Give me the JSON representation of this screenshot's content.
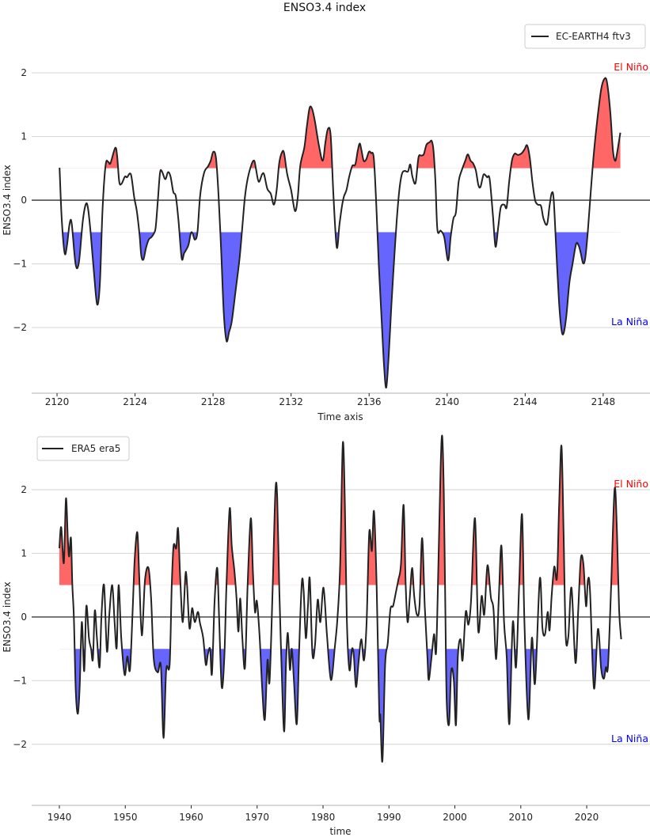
{
  "figure": {
    "title": "ENSO3.4 index"
  },
  "chart_data": [
    {
      "type": "line",
      "title": "",
      "xlabel": "Time axis",
      "ylabel": "ENSO3.4 index",
      "xlim": [
        2118.7,
        2150.4
      ],
      "ylim": [
        -3.03,
        2.87
      ],
      "xticks": [
        2120,
        2124,
        2128,
        2132,
        2136,
        2140,
        2144,
        2148
      ],
      "yticks": [
        -2,
        -1,
        0,
        1,
        2
      ],
      "grid": true,
      "legend": {
        "placement": "top-right",
        "entries": [
          "EC-EARTH4 ftv3"
        ]
      },
      "thresholds": {
        "el_nino": 0.5,
        "la_nina": -0.5
      },
      "annotations": {
        "el_nino": "El Niño",
        "la_nina": "La Niña"
      },
      "colors": {
        "line": "#222222",
        "el_nino_fill": "#ff6666",
        "la_nina_fill": "#6666ff",
        "el_nino_text": "#ff0000",
        "la_nina_text": "#0000ff",
        "zero_line": "#666666",
        "grid": "#d9d9d9"
      },
      "series": [
        {
          "name": "EC-EARTH4 ftv3",
          "x": [
            2120.13,
            2120.24,
            2120.39,
            2120.51,
            2120.64,
            2120.75,
            2120.95,
            2121.12,
            2121.32,
            2121.48,
            2121.59,
            2121.72,
            2121.9,
            2122.06,
            2122.2,
            2122.33,
            2122.49,
            2122.63,
            2122.74,
            2122.98,
            2123.08,
            2123.19,
            2123.31,
            2123.48,
            2123.59,
            2123.73,
            2123.82,
            2123.96,
            2124.09,
            2124.23,
            2124.32,
            2124.43,
            2124.56,
            2124.7,
            2124.84,
            2124.97,
            2125.06,
            2125.17,
            2125.28,
            2125.38,
            2125.55,
            2125.69,
            2125.82,
            2125.96,
            2126.09,
            2126.23,
            2126.39,
            2126.52,
            2126.73,
            2126.86,
            2126.95,
            2127.07,
            2127.2,
            2127.34,
            2127.54,
            2127.74,
            2127.88,
            2128.01,
            2128.15,
            2128.28,
            2128.42,
            2128.55,
            2128.69,
            2128.82,
            2128.96,
            2129.16,
            2129.36,
            2129.5,
            2129.63,
            2129.77,
            2129.97,
            2130.11,
            2130.2,
            2130.34,
            2130.52,
            2130.62,
            2130.78,
            2130.96,
            2131.12,
            2131.26,
            2131.39,
            2131.53,
            2131.64,
            2131.8,
            2132.0,
            2132.2,
            2132.34,
            2132.47,
            2132.68,
            2132.81,
            2132.95,
            2133.08,
            2133.22,
            2133.42,
            2133.62,
            2133.76,
            2133.89,
            2134.03,
            2134.17,
            2134.34,
            2134.48,
            2134.61,
            2134.71,
            2134.84,
            2134.98,
            2135.14,
            2135.29,
            2135.42,
            2135.52,
            2135.61,
            2135.72,
            2135.85,
            2135.99,
            2136.1,
            2136.24,
            2136.37,
            2136.5,
            2136.64,
            2136.77,
            2136.88,
            2137.01,
            2137.14,
            2137.27,
            2137.41,
            2137.55,
            2137.68,
            2137.82,
            2137.99,
            2138.11,
            2138.22,
            2138.38,
            2138.53,
            2138.67,
            2138.8,
            2138.94,
            2139.1,
            2139.21,
            2139.3,
            2139.4,
            2139.5,
            2139.67,
            2139.85,
            2140.05,
            2140.18,
            2140.32,
            2140.45,
            2140.59,
            2140.75,
            2140.93,
            2141.06,
            2141.2,
            2141.33,
            2141.47,
            2141.6,
            2141.71,
            2141.85,
            2141.94,
            2142.05,
            2142.18,
            2142.35,
            2142.48,
            2142.62,
            2142.75,
            2142.93,
            2143.05,
            2143.18,
            2143.32,
            2143.46,
            2143.63,
            2143.83,
            2143.97,
            2144.1,
            2144.24,
            2144.37,
            2144.51,
            2144.65,
            2144.81,
            2144.94,
            2145.12,
            2145.25,
            2145.36,
            2145.46,
            2145.59,
            2145.73,
            2145.86,
            2145.97,
            2146.11,
            2146.27,
            2146.43,
            2146.61,
            2146.74,
            2146.85,
            2146.97,
            2147.08,
            2147.21,
            2147.35,
            2147.51,
            2147.69,
            2147.89,
            2148.05,
            2148.19,
            2148.36,
            2148.5,
            2148.61,
            2148.7,
            2148.88
          ],
          "y": [
            0.51,
            -0.29,
            -0.83,
            -0.71,
            -0.38,
            -0.36,
            -1.0,
            -0.98,
            -0.33,
            -0.06,
            -0.13,
            -0.5,
            -1.16,
            -1.64,
            -1.29,
            -0.17,
            0.55,
            0.6,
            0.58,
            0.82,
            0.7,
            0.29,
            0.26,
            0.37,
            0.36,
            0.42,
            0.36,
            0.04,
            -0.17,
            -0.54,
            -0.87,
            -0.93,
            -0.75,
            -0.62,
            -0.58,
            -0.52,
            -0.42,
            0.0,
            0.43,
            0.45,
            0.33,
            0.44,
            0.37,
            0.13,
            0.06,
            -0.33,
            -0.91,
            -0.83,
            -0.71,
            -0.52,
            -0.52,
            -0.62,
            -0.5,
            0.08,
            0.43,
            0.53,
            0.62,
            0.76,
            0.66,
            0.08,
            -0.83,
            -1.78,
            -2.21,
            -2.07,
            -1.9,
            -1.41,
            -0.91,
            -0.42,
            0.04,
            0.33,
            0.56,
            0.62,
            0.49,
            0.29,
            0.41,
            0.4,
            0.18,
            0.1,
            -0.07,
            0.16,
            0.58,
            0.75,
            0.74,
            0.41,
            0.16,
            -0.17,
            0.04,
            0.54,
            0.83,
            1.16,
            1.45,
            1.43,
            1.24,
            0.87,
            0.62,
            0.91,
            1.12,
            1.01,
            0.08,
            -0.74,
            -0.38,
            -0.09,
            0.06,
            0.16,
            0.37,
            0.54,
            0.56,
            0.78,
            0.89,
            0.78,
            0.62,
            0.64,
            0.76,
            0.74,
            0.66,
            -0.09,
            -1.04,
            -1.87,
            -2.62,
            -2.94,
            -2.41,
            -1.66,
            -1.0,
            -0.34,
            0.16,
            0.41,
            0.46,
            0.45,
            0.56,
            0.37,
            0.27,
            0.67,
            0.7,
            0.72,
            0.87,
            0.91,
            0.93,
            0.78,
            0.29,
            -0.46,
            -0.48,
            -0.58,
            -0.95,
            -0.58,
            -0.29,
            -0.19,
            0.29,
            0.47,
            0.62,
            0.72,
            0.62,
            0.58,
            0.47,
            0.24,
            0.21,
            0.39,
            0.4,
            0.36,
            0.33,
            -0.25,
            -0.73,
            -0.42,
            -0.11,
            -0.07,
            -0.11,
            0.29,
            0.62,
            0.73,
            0.71,
            0.74,
            0.8,
            0.86,
            0.66,
            0.29,
            0.0,
            -0.07,
            -0.09,
            -0.29,
            -0.38,
            -0.09,
            0.11,
            0.02,
            -0.75,
            -1.57,
            -2.03,
            -2.09,
            -1.82,
            -1.29,
            -1.0,
            -0.69,
            -0.71,
            -0.83,
            -0.99,
            -0.91,
            -0.5,
            0.08,
            0.7,
            1.24,
            1.73,
            1.9,
            1.86,
            1.4,
            0.78,
            0.62,
            0.72,
            1.06
          ]
        }
      ]
    },
    {
      "type": "line",
      "title": "",
      "xlabel": "time",
      "ylabel": "ENSO3.4 index",
      "xlim": [
        1935.8,
        2029.6
      ],
      "ylim": [
        -2.96,
        2.92
      ],
      "xticks": [
        1940,
        1950,
        1960,
        1970,
        1980,
        1990,
        2000,
        2010,
        2020
      ],
      "yticks": [
        -2,
        -1,
        0,
        1,
        2
      ],
      "grid": true,
      "legend": {
        "placement": "top-left",
        "entries": [
          "ERA5 era5"
        ]
      },
      "thresholds": {
        "el_nino": 0.5,
        "la_nina": -0.5
      },
      "annotations": {
        "el_nino": "El Niño",
        "la_nina": "La Niña"
      },
      "colors": {
        "line": "#222222",
        "el_nino_fill": "#ff6666",
        "la_nina_fill": "#6666ff",
        "el_nino_text": "#ff0000",
        "la_nina_text": "#0000ff",
        "zero_line": "#666666",
        "grid": "#d9d9d9"
      },
      "series": [
        {
          "name": "ERA5 era5",
          "x": [
            1940.0,
            1940.28,
            1940.68,
            1941.0,
            1941.28,
            1941.48,
            1941.76,
            1941.97,
            1942.2,
            1942.49,
            1942.81,
            1943.09,
            1943.41,
            1943.77,
            1944.09,
            1944.49,
            1944.81,
            1945.09,
            1945.38,
            1945.7,
            1946.1,
            1946.38,
            1946.78,
            1947.22,
            1947.58,
            1948.02,
            1948.38,
            1948.7,
            1948.99,
            1949.39,
            1949.91,
            1950.31,
            1950.71,
            1951.11,
            1951.43,
            1951.83,
            1952.11,
            1952.51,
            1952.99,
            1953.52,
            1953.92,
            1954.32,
            1954.92,
            1955.4,
            1955.8,
            1956.21,
            1956.73,
            1957.05,
            1957.33,
            1957.73,
            1958.01,
            1958.33,
            1958.73,
            1959.21,
            1959.73,
            1960.14,
            1960.54,
            1961.02,
            1961.34,
            1961.82,
            1962.22,
            1962.54,
            1962.87,
            1963.15,
            1963.55,
            1963.95,
            1964.23,
            1964.63,
            1965.03,
            1965.35,
            1965.83,
            1966.15,
            1966.56,
            1966.88,
            1967.16,
            1967.44,
            1967.76,
            1968.16,
            1968.56,
            1969.04,
            1969.36,
            1969.68,
            1969.96,
            1970.37,
            1970.77,
            1971.17,
            1971.57,
            1971.89,
            1972.37,
            1972.77,
            1973.05,
            1973.37,
            1973.7,
            1974.1,
            1974.38,
            1974.66,
            1974.98,
            1975.26,
            1975.58,
            1976.02,
            1976.38,
            1976.78,
            1977.06,
            1977.39,
            1977.71,
            1977.99,
            1978.39,
            1978.79,
            1979.19,
            1979.59,
            1980.07,
            1980.6,
            1981.2,
            1981.8,
            1982.2,
            1982.6,
            1983.0,
            1983.32,
            1983.6,
            1984.0,
            1984.4,
            1984.68,
            1985.0,
            1985.4,
            1985.8,
            1986.21,
            1986.61,
            1987.01,
            1987.41,
            1987.73,
            1988.13,
            1988.53,
            1988.69,
            1989.01,
            1989.42,
            1989.82,
            1990.22,
            1990.62,
            1991.02,
            1991.42,
            1991.82,
            1992.22,
            1992.54,
            1992.83,
            1993.15,
            1993.51,
            1993.83,
            1994.23,
            1994.63,
            1995.03,
            1995.43,
            1995.83,
            1996.03,
            1996.43,
            1996.84,
            1997.16,
            1997.52,
            1997.84,
            1998.08,
            1998.32,
            1998.56,
            1998.76,
            1999.12,
            1999.44,
            1999.84,
            2000.16,
            2000.45,
            2000.85,
            2001.17,
            2001.65,
            2002.05,
            2002.45,
            2003.05,
            2003.54,
            2004.06,
            2004.46,
            2004.94,
            2005.46,
            2005.86,
            2006.26,
            2006.66,
            2007.06,
            2007.46,
            2007.86,
            2008.27,
            2008.79,
            2009.27,
            2009.75,
            2010.19,
            2010.55,
            2011.15,
            2011.68,
            2012.16,
            2012.88,
            2013.28,
            2013.68,
            2014.08,
            2014.36,
            2014.68,
            2015.08,
            2015.49,
            2015.81,
            2016.17,
            2016.49,
            2016.81,
            2017.21,
            2017.69,
            2018.29,
            2018.7,
            2019.1,
            2019.5,
            2019.9,
            2020.18,
            2020.5,
            2021.1,
            2021.7,
            2022.19,
            2022.59,
            2022.91,
            2023.23,
            2023.71,
            2024.23,
            2024.59,
            2024.91,
            2025.23
          ],
          "y": [
            1.08,
            1.41,
            0.85,
            1.86,
            1.24,
            0.95,
            1.24,
            0.5,
            0.0,
            -1.16,
            -1.52,
            -1.08,
            -0.08,
            -0.85,
            0.17,
            -0.33,
            -0.5,
            -0.66,
            0.1,
            -0.33,
            -0.79,
            0.0,
            0.5,
            -0.54,
            0.04,
            0.5,
            -0.08,
            -0.48,
            0.5,
            -0.33,
            -0.91,
            -0.62,
            -0.83,
            0.08,
            0.91,
            1.33,
            0.66,
            -0.29,
            0.58,
            0.77,
            0.29,
            -0.66,
            -0.87,
            -0.77,
            -1.9,
            -0.83,
            -0.75,
            0.5,
            1.12,
            1.08,
            1.39,
            0.62,
            -0.08,
            0.71,
            -0.17,
            0.14,
            -0.08,
            0.08,
            -0.1,
            -0.33,
            -0.75,
            -0.58,
            -0.5,
            -0.89,
            0.25,
            0.77,
            0.0,
            -1.1,
            -0.62,
            0.5,
            1.7,
            1.12,
            0.72,
            0.29,
            -0.23,
            0.29,
            -0.33,
            -0.79,
            0.5,
            1.55,
            0.72,
            0.08,
            0.25,
            -0.29,
            -1.12,
            -1.61,
            -0.68,
            -1.01,
            0.5,
            1.97,
            1.88,
            0.41,
            -0.75,
            -1.8,
            -0.75,
            -0.25,
            -0.83,
            -0.5,
            -0.99,
            -1.68,
            -0.5,
            0.54,
            0.41,
            -0.33,
            0.17,
            0.6,
            -0.58,
            -0.43,
            0.27,
            -0.08,
            0.46,
            -0.29,
            -0.99,
            -0.46,
            0.0,
            0.83,
            2.73,
            1.74,
            0.0,
            -0.83,
            -0.5,
            -0.62,
            -1.1,
            -0.7,
            -0.35,
            -0.68,
            -0.08,
            1.33,
            1.04,
            1.66,
            0.5,
            -1.51,
            -1.55,
            -2.26,
            -0.75,
            -0.41,
            0.12,
            0.17,
            0.37,
            0.58,
            0.83,
            1.76,
            0.5,
            -0.08,
            0.29,
            0.77,
            0.33,
            0.04,
            0.17,
            1.24,
            0.17,
            -0.62,
            -0.99,
            -0.66,
            -0.27,
            -0.54,
            0.91,
            2.36,
            2.84,
            1.95,
            0.08,
            -1.33,
            -1.68,
            -0.85,
            -0.99,
            -1.7,
            -0.62,
            -0.35,
            -0.68,
            0.08,
            -0.12,
            0.25,
            1.55,
            -0.21,
            0.33,
            0.04,
            0.81,
            0.31,
            0.12,
            -0.66,
            0.29,
            1.12,
            -0.08,
            -0.62,
            -1.68,
            -0.08,
            -0.79,
            0.5,
            1.61,
            -0.08,
            -1.61,
            -0.33,
            -1.04,
            0.6,
            -0.17,
            -0.27,
            0.08,
            -0.21,
            0.33,
            0.79,
            0.62,
            1.74,
            2.69,
            1.33,
            -0.29,
            -0.31,
            0.46,
            -0.72,
            0.08,
            0.91,
            0.83,
            0.17,
            0.58,
            0.41,
            -1.12,
            -0.19,
            -0.81,
            -0.97,
            -0.79,
            -0.77,
            0.5,
            2.01,
            1.33,
            0.12,
            -0.35
          ]
        }
      ]
    }
  ]
}
